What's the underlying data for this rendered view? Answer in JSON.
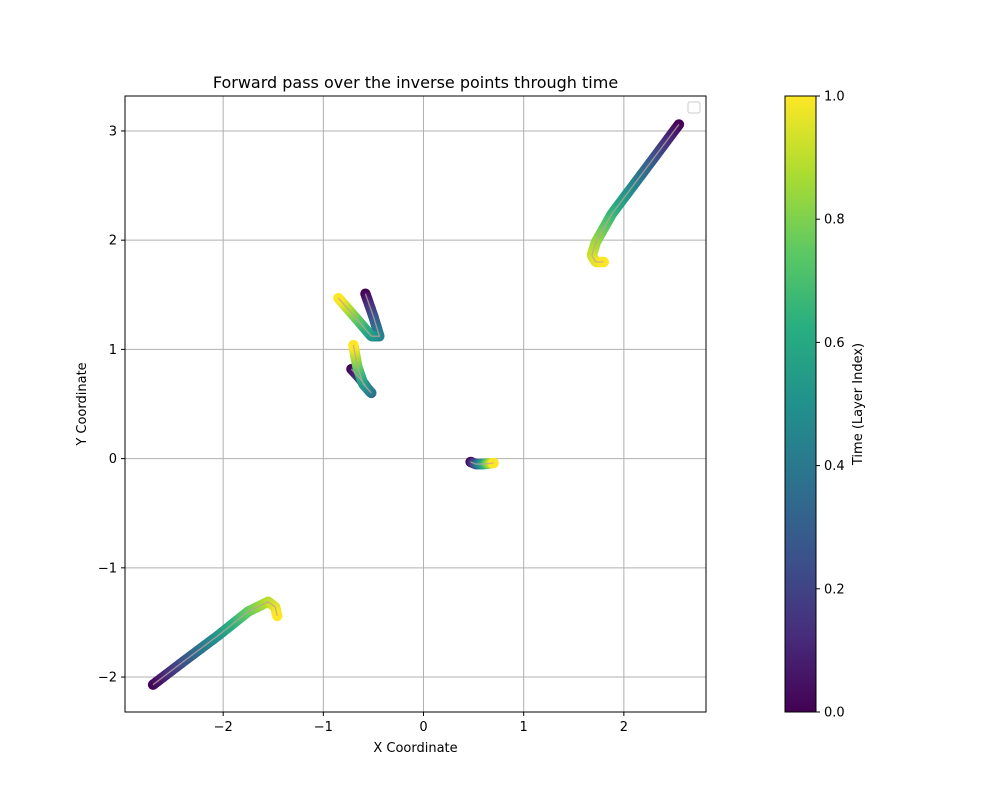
{
  "chart_data": {
    "type": "scatter",
    "title": "Forward pass over the inverse points through time",
    "xlabel": "X Coordinate",
    "ylabel": "Y Coordinate",
    "xlim": [
      -2.98,
      2.82
    ],
    "ylim": [
      -2.32,
      3.32
    ],
    "xticks": [
      -2,
      -1,
      0,
      1,
      2
    ],
    "yticks": [
      -2,
      -1,
      0,
      1,
      2,
      3
    ],
    "xtick_labels": [
      "−2",
      "−1",
      "0",
      "1",
      "2"
    ],
    "ytick_labels": [
      "−2",
      "−1",
      "0",
      "1",
      "2",
      "3"
    ],
    "grid": true,
    "legend": "top-right (empty)",
    "colorbar": {
      "label": "Time (Layer Index)",
      "range": [
        0.0,
        1.0
      ],
      "ticks": [
        0.0,
        0.2,
        0.4,
        0.6,
        0.8,
        1.0
      ],
      "tick_labels": [
        "0.0",
        "0.2",
        "0.4",
        "0.6",
        "0.8",
        "1.0"
      ],
      "colormap": "viridis"
    },
    "trajectories": [
      {
        "points": [
          [
            2.55,
            3.06
          ],
          [
            2.2,
            2.63
          ],
          [
            1.88,
            2.24
          ],
          [
            1.72,
            1.98
          ],
          [
            1.68,
            1.86
          ],
          [
            1.72,
            1.8
          ],
          [
            1.8,
            1.8
          ]
        ]
      },
      {
        "points": [
          [
            -2.7,
            -2.07
          ],
          [
            -2.4,
            -1.86
          ],
          [
            -2.05,
            -1.62
          ],
          [
            -1.75,
            -1.4
          ],
          [
            -1.55,
            -1.31
          ],
          [
            -1.48,
            -1.36
          ],
          [
            -1.46,
            -1.44
          ]
        ]
      },
      {
        "points": [
          [
            -0.58,
            1.51
          ],
          [
            -0.5,
            1.3
          ],
          [
            -0.44,
            1.12
          ],
          [
            -0.52,
            1.12
          ],
          [
            -0.65,
            1.26
          ],
          [
            -0.85,
            1.47
          ]
        ]
      },
      {
        "points": [
          [
            -0.72,
            0.82
          ],
          [
            -0.64,
            0.74
          ],
          [
            -0.55,
            0.63
          ],
          [
            -0.52,
            0.6
          ],
          [
            -0.6,
            0.68
          ],
          [
            -0.66,
            0.84
          ],
          [
            -0.7,
            1.04
          ]
        ]
      },
      {
        "points": [
          [
            0.47,
            -0.03
          ],
          [
            0.52,
            -0.05
          ],
          [
            0.6,
            -0.05
          ],
          [
            0.7,
            -0.04
          ]
        ]
      }
    ]
  }
}
